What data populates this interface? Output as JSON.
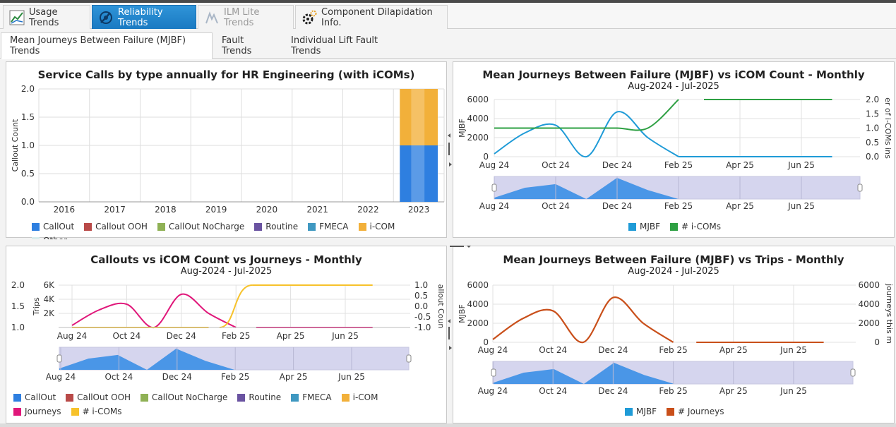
{
  "main_tabs": [
    {
      "label": "Usage Trends",
      "state": "normal",
      "icon": "usage-trends-icon"
    },
    {
      "label": "Reliability Trends",
      "state": "active",
      "icon": "reliability-trends-icon"
    },
    {
      "label": "ILM Lite Trends",
      "state": "disabled",
      "icon": "ilm-lite-icon"
    },
    {
      "label": "Component Dilapidation Info.",
      "state": "normal",
      "icon": "gears-icon"
    }
  ],
  "sub_tabs": [
    {
      "label": "Mean Journeys Between Failure (MJBF) Trends",
      "active": true
    },
    {
      "label": "Fault Trends",
      "active": false
    },
    {
      "label": "Individual Lift Fault Trends",
      "active": false
    }
  ],
  "colors": {
    "callout": "#2e7fe0",
    "callout_ooh": "#b94a48",
    "callout_nocharge": "#8fb155",
    "routine": "#6a53a1",
    "fmeca": "#3f98c1",
    "icom": "#f2b03a",
    "other": "#d8ecec",
    "journeys": "#e0177a",
    "icoms_line": "#f7c22b",
    "mjbf": "#1f9bd7",
    "icoms_green": "#2ea043",
    "trips": "#c94f1a"
  },
  "chart_data": [
    {
      "id": "service-calls",
      "type": "bar",
      "title": "Service Calls by type annually for HR Engineering (with iCOMs)",
      "ylabel": "Callout Count",
      "ylim": [
        0,
        2
      ],
      "yticks": [
        "0.0",
        "0.5",
        "1.0",
        "1.5",
        "2.0"
      ],
      "categories": [
        "2016",
        "2017",
        "2018",
        "2019",
        "2020",
        "2021",
        "2022",
        "2023"
      ],
      "series": [
        {
          "name": "CallOut",
          "values": [
            0,
            0,
            0,
            0,
            0,
            0,
            0,
            1
          ]
        },
        {
          "name": "Callout OOH",
          "values": [
            0,
            0,
            0,
            0,
            0,
            0,
            0,
            0
          ]
        },
        {
          "name": "CallOut NoCharge",
          "values": [
            0,
            0,
            0,
            0,
            0,
            0,
            0,
            0
          ]
        },
        {
          "name": "Routine",
          "values": [
            0,
            0,
            0,
            0,
            0,
            0,
            0,
            0
          ]
        },
        {
          "name": "FMECA",
          "values": [
            0,
            0,
            0,
            0,
            0,
            0,
            0,
            0
          ]
        },
        {
          "name": "i-COM",
          "values": [
            0,
            0,
            0,
            0,
            0,
            0,
            0,
            1
          ]
        },
        {
          "name": "Other",
          "values": [
            0,
            0,
            0,
            0,
            0,
            0,
            0,
            0
          ]
        }
      ],
      "legend": "bottom"
    },
    {
      "id": "mjbf-icom",
      "type": "line",
      "title": "Mean Journeys Between Failure (MJBF) vs iCOM Count - Monthly",
      "subtitle": "Aug-2024 - Jul-2025",
      "ylabel": "MJBF",
      "y2label": "er of i-COMs ins",
      "ylim": [
        0,
        6000
      ],
      "yticks": [
        "0",
        "2000",
        "4000",
        "6000"
      ],
      "y2lim": [
        0,
        2
      ],
      "y2ticks": [
        "0.0",
        "0.5",
        "1.0",
        "1.5",
        "2.0"
      ],
      "xticks": [
        "Aug 24",
        "Oct 24",
        "Dec 24",
        "Feb 25",
        "Apr 25",
        "Jun 25"
      ],
      "months": [
        "Aug 24",
        "Sep 24",
        "Oct 24",
        "Nov 24",
        "Dec 24",
        "Jan 25",
        "Feb 25",
        "Mar 25",
        "Apr 25",
        "May 25",
        "Jun 25",
        "Jul 25"
      ],
      "series": [
        {
          "name": "MJBF",
          "values": [
            300,
            2500,
            3300,
            0,
            4700,
            2000,
            0,
            0,
            0,
            0,
            0,
            0
          ]
        },
        {
          "name": "# i-COMs",
          "axis": "right",
          "values": [
            1,
            1,
            1,
            1,
            1,
            1,
            2,
            2,
            2,
            2,
            2,
            2
          ]
        }
      ],
      "legend": "bottom"
    },
    {
      "id": "callouts-icom-journeys",
      "type": "line",
      "title": "Callouts vs iCOM Count vs Journeys - Monthly",
      "subtitle": "Aug-2024 - Jul-2025",
      "ylabel": "Trips",
      "y2label": "allout Coun",
      "ylim_left_outer": [
        1,
        2
      ],
      "yticks_left_outer": [
        "1.0",
        "1.5",
        "2.0"
      ],
      "yticks_left": [
        "2K",
        "4K",
        "6K"
      ],
      "y2ticks": [
        "-1.0",
        "-0.5",
        "0.0",
        "0.5",
        "1.0"
      ],
      "xticks": [
        "Aug 24",
        "Oct 24",
        "Dec 24",
        "Feb 25",
        "Apr 25",
        "Jun 25"
      ],
      "months": [
        "Aug 24",
        "Sep 24",
        "Oct 24",
        "Nov 24",
        "Dec 24",
        "Jan 25",
        "Feb 25",
        "Mar 25",
        "Apr 25",
        "May 25",
        "Jun 25",
        "Jul 25"
      ],
      "series": [
        {
          "name": "Journeys",
          "values": [
            300,
            2500,
            3300,
            0,
            4700,
            2000,
            0,
            0,
            0,
            0,
            0,
            0
          ]
        },
        {
          "name": "# i-COMs",
          "values": [
            1,
            1,
            1,
            1,
            1,
            1,
            2,
            2,
            2,
            2,
            2,
            2
          ]
        }
      ],
      "legend_items": [
        "CallOut",
        "CallOut OOH",
        "CallOut NoCharge",
        "Routine",
        "FMECA",
        "i-COM",
        "Journeys",
        "# i-COMs"
      ],
      "legend": "bottom"
    },
    {
      "id": "mjbf-trips",
      "type": "line",
      "title": "Mean Journeys Between Failure (MJBF) vs Trips - Monthly",
      "subtitle": "Aug-2024 - Jul-2025",
      "ylabel": "MJBF",
      "y2label": "journeys this m",
      "ylim": [
        0,
        6000
      ],
      "yticks": [
        "0",
        "2000",
        "4000",
        "6000"
      ],
      "y2ticks": [
        "0",
        "2000",
        "4000",
        "6000"
      ],
      "xticks": [
        "Aug 24",
        "Oct 24",
        "Dec 24",
        "Feb 25",
        "Apr 25",
        "Jun 25"
      ],
      "months": [
        "Aug 24",
        "Sep 24",
        "Oct 24",
        "Nov 24",
        "Dec 24",
        "Jan 25",
        "Feb 25",
        "Mar 25",
        "Apr 25",
        "May 25",
        "Jun 25",
        "Jul 25"
      ],
      "series": [
        {
          "name": "MJBF",
          "values": [
            300,
            2500,
            3300,
            0,
            4700,
            2000,
            0,
            0,
            0,
            0,
            0,
            0
          ]
        },
        {
          "name": "# Journeys",
          "values": [
            300,
            2500,
            3300,
            0,
            4700,
            2000,
            0,
            0,
            0,
            0,
            0,
            0
          ]
        }
      ],
      "legend": "bottom"
    }
  ]
}
